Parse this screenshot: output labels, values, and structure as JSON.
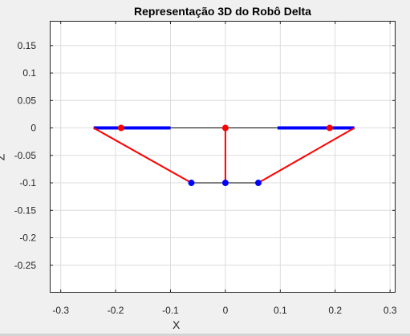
{
  "chart_data": {
    "type": "line",
    "title": "Representação 3D do Robô Delta",
    "xlabel": "X",
    "ylabel": "Z",
    "xlim": [
      -0.32,
      0.31
    ],
    "ylim": [
      -0.3,
      0.195
    ],
    "grid": true,
    "xticks": [
      -0.3,
      -0.2,
      -0.1,
      0,
      0.1,
      0.2,
      0.3
    ],
    "xtick_labels": [
      "-0.3",
      "-0.2",
      "-0.1",
      "0",
      "0.1",
      "0.2",
      "0.3"
    ],
    "yticks": [
      0.15,
      0.1,
      0.05,
      0,
      -0.05,
      -0.1,
      -0.15,
      -0.2,
      -0.25
    ],
    "ytick_labels": [
      "0.15",
      "0.1",
      "0.05",
      "0",
      "-0.05",
      "-0.1",
      "-0.15",
      "-0.2",
      "-0.25"
    ],
    "series": [
      {
        "role": "base-outline",
        "color": "#000000",
        "width": 1,
        "x": [
          -0.24,
          0.235
        ],
        "y": [
          0,
          0
        ]
      },
      {
        "role": "actuator-left",
        "color": "#0000ff",
        "width": 4,
        "x": [
          -0.24,
          -0.1
        ],
        "y": [
          0,
          0
        ]
      },
      {
        "role": "actuator-right",
        "color": "#0000ff",
        "width": 4,
        "x": [
          0.095,
          0.235
        ],
        "y": [
          0,
          0
        ]
      },
      {
        "role": "effector-outline",
        "color": "#000000",
        "width": 1,
        "x": [
          -0.062,
          0.06
        ],
        "y": [
          -0.1,
          -0.1
        ]
      },
      {
        "role": "arm-left",
        "color": "#ff0000",
        "width": 2,
        "x": [
          -0.24,
          -0.062
        ],
        "y": [
          0,
          -0.1
        ]
      },
      {
        "role": "arm-center",
        "color": "#ff0000",
        "width": 2,
        "x": [
          0,
          0
        ],
        "y": [
          0,
          -0.1
        ]
      },
      {
        "role": "arm-right",
        "color": "#ff0000",
        "width": 2,
        "x": [
          0.235,
          0.06
        ],
        "y": [
          0,
          -0.1
        ]
      }
    ],
    "points": [
      {
        "role": "joint-left",
        "color": "#ff0000",
        "x": -0.19,
        "y": 0
      },
      {
        "role": "joint-center",
        "color": "#ff0000",
        "x": 0,
        "y": 0
      },
      {
        "role": "joint-right",
        "color": "#ff0000",
        "x": 0.19,
        "y": 0
      },
      {
        "role": "effector-left",
        "color": "#0000ff",
        "x": -0.062,
        "y": -0.1
      },
      {
        "role": "effector-center",
        "color": "#0000ff",
        "x": 0,
        "y": -0.1
      },
      {
        "role": "effector-right",
        "color": "#0000ff",
        "x": 0.06,
        "y": -0.1
      }
    ]
  }
}
